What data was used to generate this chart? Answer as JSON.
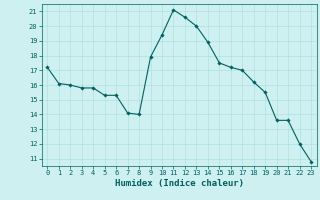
{
  "xlabel": "Humidex (Indice chaleur)",
  "ylabel": "",
  "x": [
    0,
    1,
    2,
    3,
    4,
    5,
    6,
    7,
    8,
    9,
    10,
    11,
    12,
    13,
    14,
    15,
    16,
    17,
    18,
    19,
    20,
    21,
    22,
    23
  ],
  "y": [
    17.2,
    16.1,
    16.0,
    15.8,
    15.8,
    15.3,
    15.3,
    14.1,
    14.0,
    17.9,
    19.4,
    21.1,
    20.6,
    20.0,
    18.9,
    17.5,
    17.2,
    17.0,
    16.2,
    15.5,
    13.6,
    13.6,
    12.0,
    10.8
  ],
  "line_color": "#006060",
  "marker": "D",
  "marker_size": 1.8,
  "line_width": 0.8,
  "background_color": "#cff0f0",
  "grid_color": "#a8dede",
  "ylim": [
    10.5,
    21.5
  ],
  "xlim": [
    -0.5,
    23.5
  ],
  "yticks": [
    11,
    12,
    13,
    14,
    15,
    16,
    17,
    18,
    19,
    20,
    21
  ],
  "xticks": [
    0,
    1,
    2,
    3,
    4,
    5,
    6,
    7,
    8,
    9,
    10,
    11,
    12,
    13,
    14,
    15,
    16,
    17,
    18,
    19,
    20,
    21,
    22,
    23
  ],
  "tick_fontsize": 5.0,
  "xlabel_fontsize": 6.5,
  "axis_color": "#006060"
}
